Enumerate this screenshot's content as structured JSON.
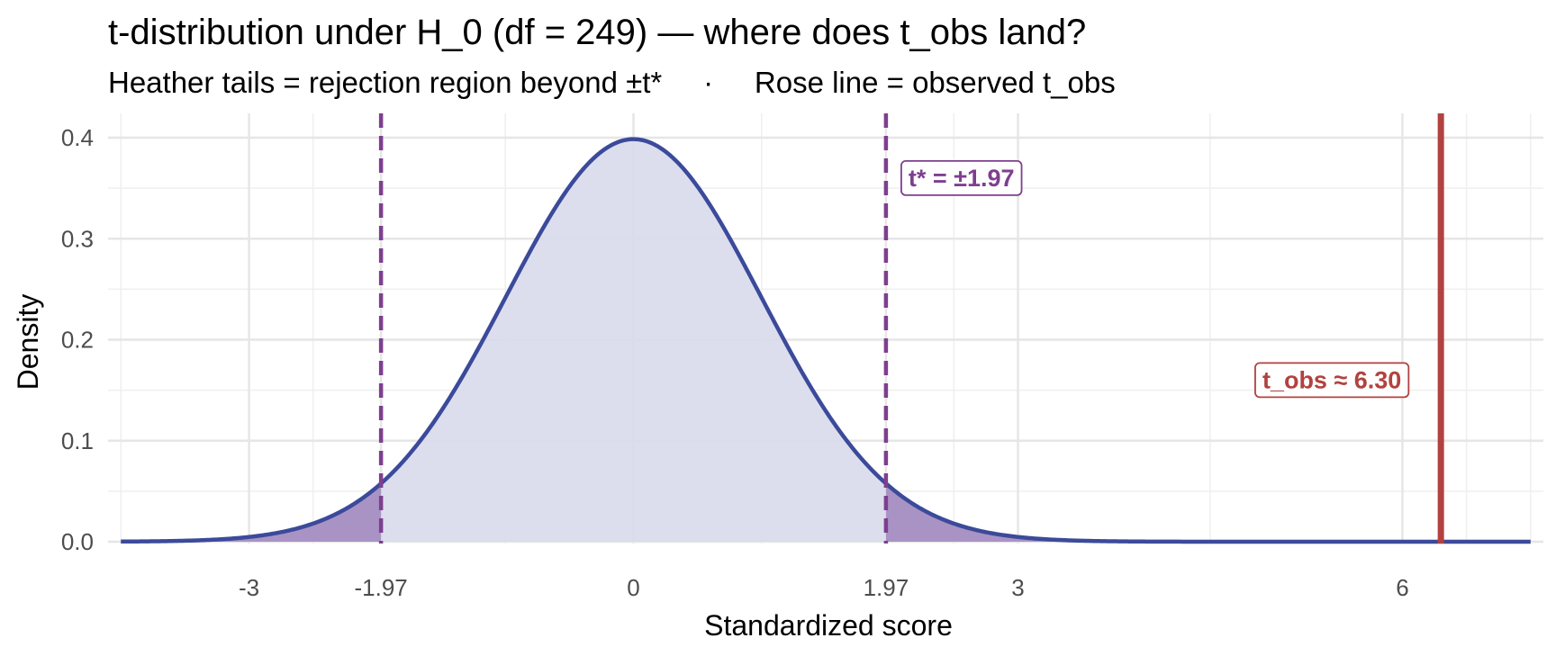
{
  "chart_data": {
    "type": "area",
    "title": "t-distribution under H_0 (df = 249) — where does t_obs land?",
    "subtitle": "Heather tails = rejection region beyond ±t*     ·     Rose line = observed t_obs",
    "xlabel": "Standardized score",
    "ylabel": "Density",
    "df": 249,
    "xlim": [
      -4.1,
      7.1
    ],
    "ylim": [
      0,
      0.4
    ],
    "x_range_curve": [
      -4.0,
      7.0
    ],
    "x_ticks": [
      {
        "value": -3,
        "label": "-3"
      },
      {
        "value": -1.97,
        "label": "-1.97"
      },
      {
        "value": 0,
        "label": "0"
      },
      {
        "value": 1.97,
        "label": "1.97"
      },
      {
        "value": 3,
        "label": "3"
      },
      {
        "value": 6,
        "label": "6"
      }
    ],
    "x_minor_ticks": [
      -4,
      -2.5,
      -1,
      1,
      2.5,
      4.5,
      6.5,
      7
    ],
    "y_ticks": [
      {
        "value": 0.0,
        "label": "0.0"
      },
      {
        "value": 0.1,
        "label": "0.1"
      },
      {
        "value": 0.2,
        "label": "0.2"
      },
      {
        "value": 0.3,
        "label": "0.3"
      },
      {
        "value": 0.4,
        "label": "0.4"
      }
    ],
    "y_minor_ticks": [
      0.05,
      0.15,
      0.25,
      0.35
    ],
    "critical_value": 1.97,
    "t_obs": 6.3,
    "annotations": {
      "critical": "t* = ±1.97",
      "observed": "t_obs ≈ 6.30"
    },
    "grid": true,
    "legend": "none",
    "colors": {
      "curve": "#3b4a9a",
      "fill": "#d8daec",
      "tails": "#a993c4",
      "critical": "#7e3f8f",
      "observed": "#b1423f",
      "grid": "#e6e6e6",
      "tick_text": "#4d4d4d"
    }
  }
}
